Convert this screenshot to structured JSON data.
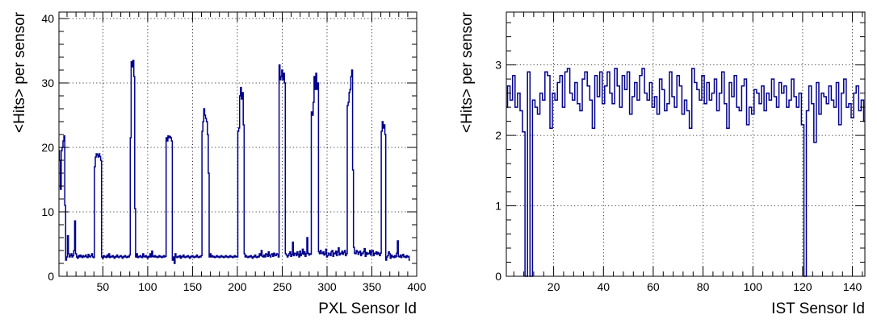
{
  "chart_data": [
    {
      "type": "line",
      "style": "step-histogram",
      "xlabel": "PXL Sensor Id",
      "ylabel": "<Hits> per sensor",
      "xlim": [
        1,
        400
      ],
      "ylim": [
        0,
        41
      ],
      "xticks": [
        50,
        100,
        150,
        200,
        250,
        300,
        350,
        400
      ],
      "yticks": [
        0,
        10,
        20,
        30,
        40
      ],
      "grid": true,
      "line_color": "#00008b",
      "bin_width": 1,
      "x_start": 1,
      "values": [
        19.5,
        18.0,
        13.5,
        19.5,
        20.0,
        21.0,
        21.8,
        11.0,
        2.5,
        3.0,
        6.3,
        3.5,
        3.0,
        3.2,
        3.5,
        3.0,
        3.2,
        4.0,
        8.6,
        3.5,
        3.0,
        2.8,
        3.2,
        3.0,
        3.3,
        3.1,
        2.9,
        3.2,
        3.0,
        3.1,
        3.3,
        3.0,
        2.9,
        3.4,
        3.1,
        3.0,
        3.2,
        3.5,
        3.0,
        2.9,
        17.0,
        18.5,
        19.0,
        18.8,
        18.5,
        19.0,
        18.6,
        18.0,
        3.0,
        2.8,
        3.2,
        3.0,
        3.1,
        2.9,
        3.3,
        3.0,
        3.5,
        2.9,
        3.1,
        3.0,
        3.2,
        3.0,
        2.8,
        3.1,
        3.0,
        3.3,
        3.0,
        2.9,
        3.1,
        3.2,
        3.0,
        2.8,
        3.1,
        3.0,
        3.2,
        3.0,
        2.9,
        3.1,
        3.0,
        3.3,
        21.5,
        33.3,
        32.5,
        33.5,
        31.0,
        10.5,
        3.0,
        3.5,
        2.9,
        3.1,
        3.0,
        3.2,
        3.0,
        2.9,
        3.5,
        3.1,
        3.0,
        3.2,
        3.0,
        2.8,
        3.1,
        3.0,
        3.5,
        3.0,
        3.9,
        3.1,
        3.0,
        3.2,
        3.0,
        3.1,
        2.9,
        3.0,
        3.2,
        3.0,
        3.1,
        2.9,
        3.0,
        3.2,
        3.0,
        3.1,
        21.5,
        21.0,
        21.8,
        21.5,
        21.7,
        21.5,
        21.0,
        2.5,
        3.0,
        2.0,
        3.5,
        3.0,
        2.9,
        3.1,
        3.0,
        3.2,
        2.8,
        3.1,
        3.0,
        3.3,
        3.0,
        2.9,
        3.1,
        3.0,
        3.2,
        3.0,
        2.8,
        3.1,
        3.0,
        3.2,
        3.0,
        2.9,
        3.1,
        3.0,
        3.3,
        3.0,
        2.9,
        3.1,
        3.0,
        3.2,
        22.5,
        24.0,
        26.0,
        25.0,
        24.5,
        24.0,
        22.0,
        16.0,
        3.0,
        3.5,
        3.0,
        3.2,
        3.0,
        3.1,
        2.9,
        3.0,
        3.2,
        3.0,
        3.1,
        2.9,
        3.0,
        3.2,
        3.0,
        3.1,
        2.9,
        3.0,
        3.2,
        3.0,
        3.1,
        2.9,
        3.0,
        3.2,
        3.0,
        3.1,
        2.9,
        3.0,
        3.2,
        3.0,
        3.1,
        3.0,
        22.5,
        23.0,
        28.0,
        29.3,
        27.5,
        28.5,
        23.5,
        3.5,
        3.0,
        3.2,
        3.0,
        2.9,
        3.1,
        3.0,
        3.2,
        3.0,
        2.8,
        3.1,
        3.0,
        3.3,
        3.0,
        2.9,
        3.1,
        3.0,
        3.5,
        3.2,
        4.0,
        3.1,
        3.0,
        3.3,
        3.0,
        3.5,
        3.4,
        3.1,
        3.8,
        3.2,
        3.0,
        3.4,
        3.5,
        3.1,
        3.6,
        3.3,
        3.2,
        3.5,
        3.4,
        3.0,
        32.8,
        30.5,
        31.0,
        32.0,
        30.5,
        31.5,
        30.0,
        3.5,
        3.3,
        3.0,
        3.2,
        3.5,
        3.8,
        3.1,
        3.4,
        5.3,
        3.2,
        3.6,
        3.5,
        3.2,
        3.8,
        3.4,
        3.0,
        3.9,
        3.2,
        3.5,
        4.2,
        3.4,
        3.8,
        3.1,
        3.5,
        6.0,
        3.6,
        3.3,
        3.5,
        3.4,
        25.5,
        25.0,
        27.0,
        31.0,
        29.0,
        31.5,
        29.0,
        30.0,
        3.8,
        3.5,
        4.0,
        3.6,
        3.5,
        3.8,
        3.3,
        3.5,
        4.2,
        3.0,
        3.2,
        3.6,
        3.5,
        3.2,
        3.8,
        4.0,
        3.1,
        3.6,
        3.5,
        3.9,
        3.2,
        3.8,
        4.4,
        3.3,
        3.6,
        3.5,
        3.9,
        3.4,
        3.7,
        4.0,
        3.2,
        3.5,
        26.5,
        27.0,
        28.5,
        29.0,
        31.0,
        32.0,
        16.5,
        4.5,
        3.6,
        3.5,
        4.0,
        3.8,
        3.4,
        3.7,
        3.9,
        3.2,
        3.6,
        3.5,
        3.8,
        4.3,
        3.1,
        3.7,
        3.4,
        3.6,
        3.5,
        4.0,
        3.3,
        3.9,
        4.0,
        3.2,
        3.6,
        3.5,
        3.8,
        3.4,
        3.7,
        3.5,
        3.2,
        3.6,
        22.5,
        24.0,
        23.0,
        23.5,
        22.0,
        2.5,
        3.0,
        3.2,
        3.8,
        3.5,
        2.8,
        3.3,
        3.0,
        3.1,
        2.9,
        3.2,
        3.0,
        3.6,
        5.5,
        3.1,
        3.0,
        3.3,
        2.9,
        3.2,
        3.4,
        3.0,
        3.1,
        2.9,
        3.2,
        3.0,
        3.1,
        2.5
      ]
    },
    {
      "type": "line",
      "style": "step-histogram",
      "xlabel": "IST Sensor Id",
      "ylabel": "<Hits> per sensor",
      "xlim": [
        1,
        145
      ],
      "ylim": [
        0,
        3.75
      ],
      "xticks": [
        20,
        40,
        60,
        80,
        100,
        120,
        140
      ],
      "yticks": [
        0,
        1,
        2,
        3
      ],
      "grid": true,
      "line_color": "#00008b",
      "bin_width": 1,
      "x_start": 1,
      "values": [
        2.4,
        2.7,
        2.5,
        2.85,
        2.4,
        2.6,
        2.35,
        2.05,
        0.0,
        2.9,
        0.0,
        2.5,
        2.4,
        2.3,
        2.6,
        2.5,
        2.9,
        2.85,
        2.1,
        2.6,
        2.5,
        2.75,
        2.85,
        2.4,
        2.9,
        2.95,
        2.6,
        2.5,
        2.75,
        2.45,
        2.35,
        2.8,
        2.9,
        2.7,
        2.5,
        2.1,
        2.85,
        2.55,
        2.9,
        2.45,
        2.7,
        2.9,
        2.6,
        2.45,
        2.95,
        2.7,
        2.4,
        2.85,
        2.65,
        2.9,
        2.3,
        2.55,
        2.75,
        2.5,
        2.85,
        2.95,
        2.6,
        2.5,
        2.75,
        2.4,
        2.55,
        2.3,
        2.8,
        2.65,
        2.35,
        2.45,
        2.9,
        2.55,
        2.4,
        2.85,
        2.7,
        2.3,
        2.5,
        2.35,
        2.1,
        2.95,
        2.75,
        2.65,
        2.5,
        2.85,
        2.45,
        2.75,
        2.5,
        2.6,
        2.8,
        2.35,
        2.6,
        2.9,
        2.45,
        2.1,
        2.75,
        2.55,
        2.85,
        2.4,
        2.35,
        2.7,
        2.8,
        2.15,
        2.4,
        2.3,
        2.65,
        2.6,
        2.45,
        2.7,
        2.35,
        2.6,
        2.5,
        2.8,
        2.55,
        2.4,
        2.75,
        2.6,
        2.7,
        2.4,
        2.5,
        2.8,
        2.55,
        2.4,
        2.6,
        2.15,
        0.0,
        2.35,
        2.7,
        2.45,
        1.9,
        2.75,
        2.3,
        2.6,
        2.55,
        2.45,
        2.7,
        2.5,
        2.4,
        2.75,
        2.15,
        2.6,
        2.8,
        2.4,
        2.45,
        2.25,
        2.6,
        2.7,
        2.35,
        2.5,
        2.2
      ]
    }
  ]
}
